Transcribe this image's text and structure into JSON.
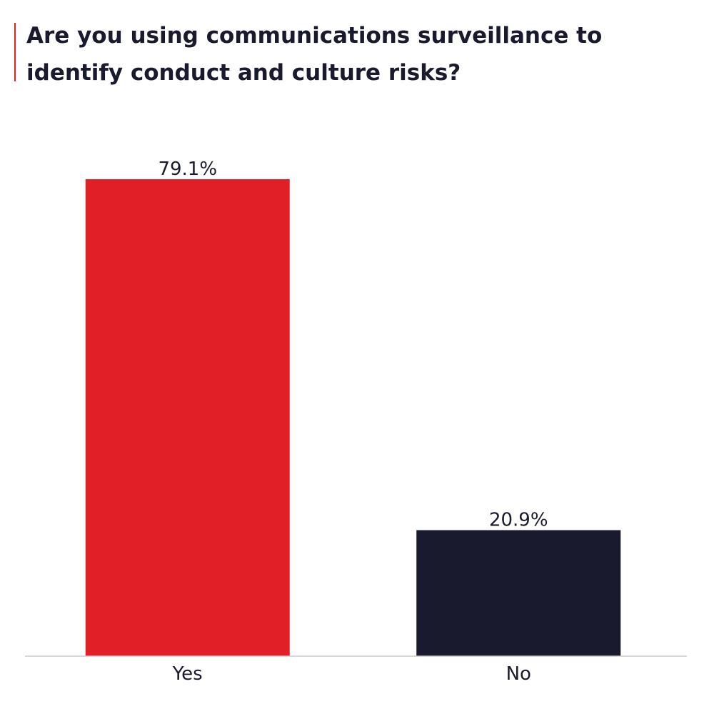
{
  "title": "Are you using communications surveillance to identify conduct and culture risks?",
  "colors": {
    "accent": "#e11f26",
    "yes": "#e11f26",
    "no": "#1a1a2e",
    "axis": "#cccccc",
    "text": "#1a1a2e"
  },
  "chart_data": {
    "type": "bar",
    "title": "Are you using communications surveillance to identify conduct and culture risks?",
    "categories": [
      "Yes",
      "No"
    ],
    "values": [
      79.1,
      20.9
    ],
    "value_labels": [
      "79.1%",
      "20.9%"
    ],
    "unit": "%",
    "xlabel": "",
    "ylabel": "",
    "ylim": [
      0,
      79.1
    ],
    "grid": false,
    "legend": "none",
    "bar_colors": [
      "#e11f26",
      "#1a1a2e"
    ]
  }
}
